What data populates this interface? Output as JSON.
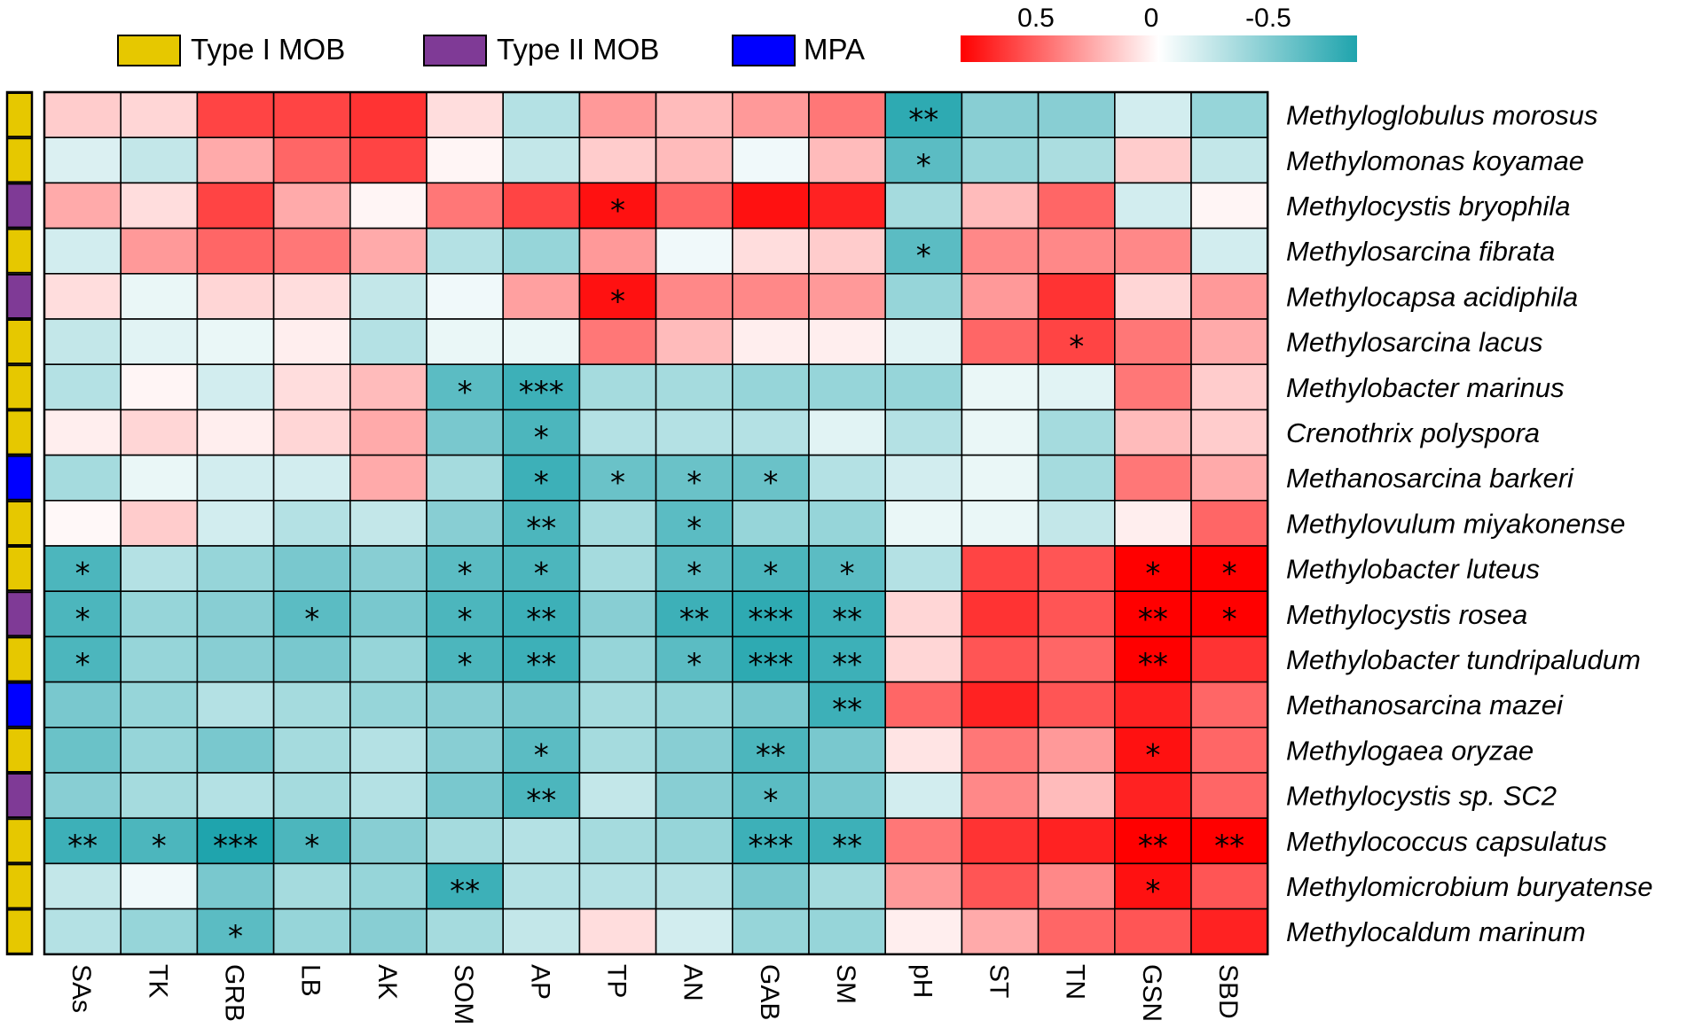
{
  "chart_data": {
    "type": "heatmap",
    "title": "",
    "legend": {
      "groups": [
        {
          "name": "Type I MOB",
          "color": "#e6c800"
        },
        {
          "name": "Type II MOB",
          "color": "#7f3a96"
        },
        {
          "name": "MPA",
          "color": "#0000ff"
        }
      ],
      "colorscale": {
        "ticks": [
          "0.5",
          "0",
          "-0.5"
        ],
        "tick_values": [
          0.5,
          0,
          -0.5
        ],
        "range": [
          0.75,
          -0.75
        ],
        "positive_color": "#ff0000",
        "zero_color": "#ffffff",
        "negative_color": "#1fa4ad"
      }
    },
    "columns": [
      "SAs",
      "TK",
      "GRB",
      "LB",
      "AK",
      "SOM",
      "AP",
      "TP",
      "AN",
      "GAB",
      "SM",
      "pH",
      "ST",
      "TN",
      "GSN",
      "SBD"
    ],
    "rows": [
      {
        "name": "Methyloglobulus morosus",
        "group": "Type I MOB",
        "values": [
          0.15,
          0.12,
          0.55,
          0.55,
          0.6,
          0.1,
          -0.25,
          0.3,
          0.2,
          0.3,
          0.4,
          -0.7,
          -0.4,
          -0.4,
          -0.15,
          -0.35
        ],
        "stars": [
          "",
          "",
          "",
          "",
          "",
          "",
          "",
          "",
          "",
          "",
          "",
          "**",
          "",
          "",
          "",
          ""
        ]
      },
      {
        "name": "Methylomonas koyamae",
        "group": "Type I MOB",
        "values": [
          -0.12,
          -0.2,
          0.25,
          0.45,
          0.55,
          0.03,
          -0.2,
          0.15,
          0.2,
          -0.05,
          0.2,
          -0.55,
          -0.35,
          -0.28,
          0.15,
          -0.2
        ],
        "stars": [
          "",
          "",
          "",
          "",
          "",
          "",
          "",
          "",
          "",
          "",
          "",
          "*",
          "",
          "",
          "",
          ""
        ]
      },
      {
        "name": "Methylocystis bryophila",
        "group": "Type II MOB",
        "values": [
          0.25,
          0.1,
          0.55,
          0.25,
          0.03,
          0.4,
          0.55,
          0.7,
          0.45,
          0.7,
          0.65,
          -0.3,
          0.2,
          0.45,
          -0.15,
          0.03
        ],
        "stars": [
          "",
          "",
          "",
          "",
          "",
          "",
          "",
          "*",
          "",
          "",
          "",
          "",
          "",
          "",
          "",
          ""
        ]
      },
      {
        "name": "Methylosarcina fibrata",
        "group": "Type I MOB",
        "values": [
          -0.15,
          0.3,
          0.45,
          0.4,
          0.25,
          -0.25,
          -0.35,
          0.3,
          -0.05,
          0.1,
          0.15,
          -0.55,
          0.35,
          0.35,
          0.35,
          -0.15
        ],
        "stars": [
          "",
          "",
          "",
          "",
          "",
          "",
          "",
          "",
          "",
          "",
          "",
          "*",
          "",
          "",
          "",
          ""
        ]
      },
      {
        "name": "Methylocapsa acidiphila",
        "group": "Type II MOB",
        "values": [
          0.1,
          -0.07,
          0.12,
          0.1,
          -0.2,
          -0.05,
          0.28,
          0.7,
          0.35,
          0.35,
          0.3,
          -0.35,
          0.3,
          0.6,
          0.12,
          0.3
        ],
        "stars": [
          "",
          "",
          "",
          "",
          "",
          "",
          "",
          "*",
          "",
          "",
          "",
          "",
          "",
          "",
          "",
          ""
        ]
      },
      {
        "name": "Methylosarcina lacus",
        "group": "Type I MOB",
        "values": [
          -0.2,
          -0.1,
          -0.07,
          0.05,
          -0.25,
          -0.07,
          -0.07,
          0.4,
          0.2,
          0.05,
          0.05,
          -0.1,
          0.45,
          0.55,
          0.4,
          0.25
        ],
        "stars": [
          "",
          "",
          "",
          "",
          "",
          "",
          "",
          "",
          "",
          "",
          "",
          "",
          "",
          "*",
          "",
          ""
        ]
      },
      {
        "name": "Methylobacter marinus",
        "group": "Type I MOB",
        "values": [
          -0.25,
          0.03,
          -0.15,
          0.1,
          0.2,
          -0.55,
          -0.65,
          -0.3,
          -0.3,
          -0.35,
          -0.35,
          -0.35,
          -0.07,
          -0.1,
          0.4,
          0.15
        ],
        "stars": [
          "",
          "",
          "",
          "",
          "",
          "*",
          "***",
          "",
          "",
          "",
          "",
          "",
          "",
          "",
          "",
          ""
        ]
      },
      {
        "name": "Crenothrix polyspora",
        "group": "Type I MOB",
        "values": [
          0.05,
          0.12,
          0.05,
          0.12,
          0.25,
          -0.45,
          -0.6,
          -0.25,
          -0.25,
          -0.25,
          -0.1,
          -0.25,
          -0.07,
          -0.3,
          0.2,
          0.15
        ],
        "stars": [
          "",
          "",
          "",
          "",
          "",
          "",
          "*",
          "",
          "",
          "",
          "",
          "",
          "",
          "",
          "",
          ""
        ]
      },
      {
        "name": "Methanosarcina barkeri",
        "group": "MPA",
        "values": [
          -0.3,
          -0.07,
          -0.15,
          -0.15,
          0.25,
          -0.3,
          -0.65,
          -0.5,
          -0.5,
          -0.5,
          -0.25,
          -0.15,
          -0.07,
          -0.3,
          0.4,
          0.25
        ],
        "stars": [
          "",
          "",
          "",
          "",
          "",
          "",
          "*",
          "*",
          "*",
          "*",
          "",
          "",
          "",
          "",
          "",
          ""
        ]
      },
      {
        "name": "Methylovulum miyakonense",
        "group": "Type I MOB",
        "values": [
          0.02,
          0.15,
          -0.15,
          -0.25,
          -0.2,
          -0.4,
          -0.6,
          -0.3,
          -0.55,
          -0.35,
          -0.35,
          -0.07,
          -0.07,
          -0.2,
          0.05,
          0.45
        ],
        "stars": [
          "",
          "",
          "",
          "",
          "",
          "",
          "**",
          "",
          "*",
          "",
          "",
          "",
          "",
          "",
          "",
          ""
        ]
      },
      {
        "name": "Methylobacter luteus",
        "group": "Type I MOB",
        "values": [
          -0.6,
          -0.25,
          -0.35,
          -0.45,
          -0.4,
          -0.55,
          -0.6,
          -0.3,
          -0.55,
          -0.6,
          -0.55,
          -0.25,
          0.55,
          0.5,
          0.8,
          0.8
        ],
        "stars": [
          "*",
          "",
          "",
          "",
          "",
          "*",
          "*",
          "",
          "*",
          "*",
          "*",
          "",
          "",
          "",
          "*",
          "*"
        ]
      },
      {
        "name": "Methylocystis rosea",
        "group": "Type II MOB",
        "values": [
          -0.6,
          -0.35,
          -0.4,
          -0.55,
          -0.45,
          -0.6,
          -0.65,
          -0.4,
          -0.65,
          -0.7,
          -0.65,
          0.12,
          0.6,
          0.5,
          0.85,
          0.8
        ],
        "stars": [
          "*",
          "",
          "",
          "*",
          "",
          "*",
          "**",
          "",
          "**",
          "***",
          "**",
          "",
          "",
          "",
          "**",
          "*"
        ]
      },
      {
        "name": "Methylobacter tundripaludum",
        "group": "Type I MOB",
        "values": [
          -0.6,
          -0.35,
          -0.4,
          -0.45,
          -0.35,
          -0.6,
          -0.65,
          -0.35,
          -0.55,
          -0.7,
          -0.65,
          0.12,
          0.5,
          0.45,
          0.85,
          0.6
        ],
        "stars": [
          "*",
          "",
          "",
          "",
          "",
          "*",
          "**",
          "",
          "*",
          "***",
          "**",
          "",
          "",
          "",
          "**",
          ""
        ]
      },
      {
        "name": "Methanosarcina mazei",
        "group": "MPA",
        "values": [
          -0.45,
          -0.35,
          -0.25,
          -0.3,
          -0.35,
          -0.4,
          -0.45,
          -0.3,
          -0.35,
          -0.45,
          -0.65,
          0.45,
          0.65,
          0.5,
          0.65,
          0.45
        ],
        "stars": [
          "",
          "",
          "",
          "",
          "",
          "",
          "",
          "",
          "",
          "",
          "**",
          "",
          "",
          "",
          "",
          ""
        ]
      },
      {
        "name": "Methylogaea oryzae",
        "group": "Type I MOB",
        "values": [
          -0.5,
          -0.35,
          -0.45,
          -0.3,
          -0.25,
          -0.4,
          -0.55,
          -0.3,
          -0.4,
          -0.6,
          -0.45,
          0.08,
          0.4,
          0.3,
          0.7,
          0.45
        ],
        "stars": [
          "",
          "",
          "",
          "",
          "",
          "",
          "*",
          "",
          "",
          "**",
          "",
          "",
          "",
          "",
          "*",
          ""
        ]
      },
      {
        "name": "Methylocystis sp. SC2",
        "group": "Type II MOB",
        "values": [
          -0.4,
          -0.3,
          -0.25,
          -0.3,
          -0.25,
          -0.45,
          -0.6,
          -0.2,
          -0.4,
          -0.55,
          -0.45,
          -0.15,
          0.35,
          0.2,
          0.65,
          0.45
        ],
        "stars": [
          "",
          "",
          "",
          "",
          "",
          "",
          "**",
          "",
          "",
          "*",
          "",
          "",
          "",
          "",
          "",
          ""
        ]
      },
      {
        "name": "Methylococcus capsulatus",
        "group": "Type I MOB",
        "values": [
          -0.65,
          -0.6,
          -0.75,
          -0.6,
          -0.4,
          -0.3,
          -0.25,
          -0.3,
          -0.35,
          -0.65,
          -0.65,
          0.4,
          0.6,
          0.65,
          0.85,
          0.85
        ],
        "stars": [
          "**",
          "*",
          "***",
          "*",
          "",
          "",
          "",
          "",
          "",
          "***",
          "**",
          "",
          "",
          "",
          "**",
          "**"
        ]
      },
      {
        "name": "Methylomicrobium buryatense",
        "group": "Type I MOB",
        "values": [
          -0.2,
          -0.05,
          -0.45,
          -0.3,
          -0.35,
          -0.65,
          -0.25,
          -0.25,
          -0.25,
          -0.45,
          -0.3,
          0.3,
          0.5,
          0.35,
          0.7,
          0.5
        ],
        "stars": [
          "",
          "",
          "",
          "",
          "",
          "**",
          "",
          "",
          "",
          "",
          "",
          "",
          "",
          "",
          "*",
          ""
        ]
      },
      {
        "name": "Methylocaldum marinum",
        "group": "Type I MOB",
        "values": [
          -0.25,
          -0.35,
          -0.55,
          -0.35,
          -0.4,
          -0.3,
          -0.2,
          0.1,
          -0.15,
          -0.35,
          -0.35,
          0.05,
          0.25,
          0.45,
          0.5,
          0.65
        ],
        "stars": [
          "",
          "",
          "*",
          "",
          "",
          "",
          "",
          "",
          "",
          "",
          "",
          "",
          "",
          "",
          "",
          ""
        ]
      }
    ]
  }
}
